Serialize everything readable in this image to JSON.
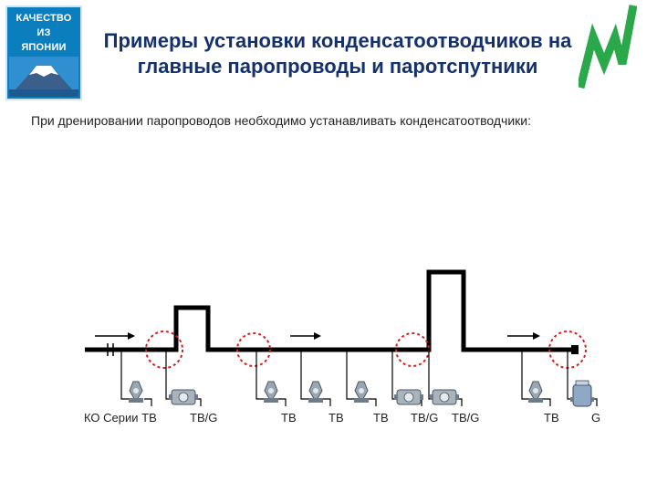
{
  "header": {
    "badge_line1": "КАЧЕСТВО",
    "badge_line2": "ИЗ",
    "badge_line3": "ЯПОНИИ",
    "title_line1": "Примеры установки конденсатоотводчиков на",
    "title_line2": "главные паропроводы и паротспутники"
  },
  "intro": "При дренировании паропроводов необходимо устанавливать конденсатоотводчики:",
  "traps": [
    {
      "label": "КО Серии ТВ"
    },
    {
      "label": "ТВ/G"
    },
    {
      "label": "ТВ"
    },
    {
      "label": "ТВ"
    },
    {
      "label": "ТВ"
    },
    {
      "label": "ТВ/G"
    },
    {
      "label": "ТВ/G"
    },
    {
      "label": "ТВ"
    },
    {
      "label": "G"
    }
  ],
  "colors": {
    "title": "#15316d",
    "badge": "#0b7fbe",
    "logo": "#2aa84a",
    "highlight": "#d42020",
    "pipe": "#000000"
  }
}
